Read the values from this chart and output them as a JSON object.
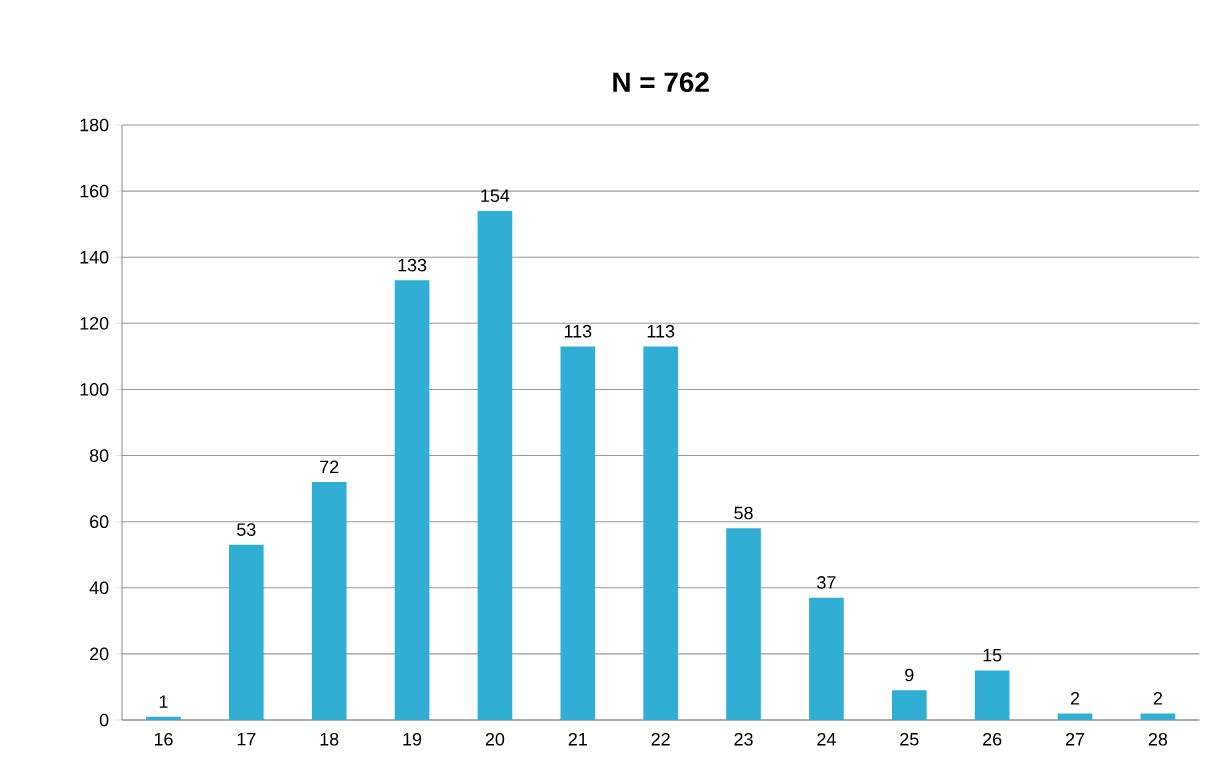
{
  "chart_data": {
    "type": "bar",
    "title": "N = 762",
    "categories": [
      "16",
      "17",
      "18",
      "19",
      "20",
      "21",
      "22",
      "23",
      "24",
      "25",
      "26",
      "27",
      "28"
    ],
    "values": [
      1,
      53,
      72,
      133,
      154,
      113,
      113,
      58,
      37,
      9,
      15,
      2,
      2
    ],
    "color": "#31aed4",
    "ylim": [
      0,
      180
    ],
    "yticks": [
      0,
      20,
      40,
      60,
      80,
      100,
      120,
      140,
      160,
      180
    ],
    "grid": "y",
    "data_labels": true
  }
}
